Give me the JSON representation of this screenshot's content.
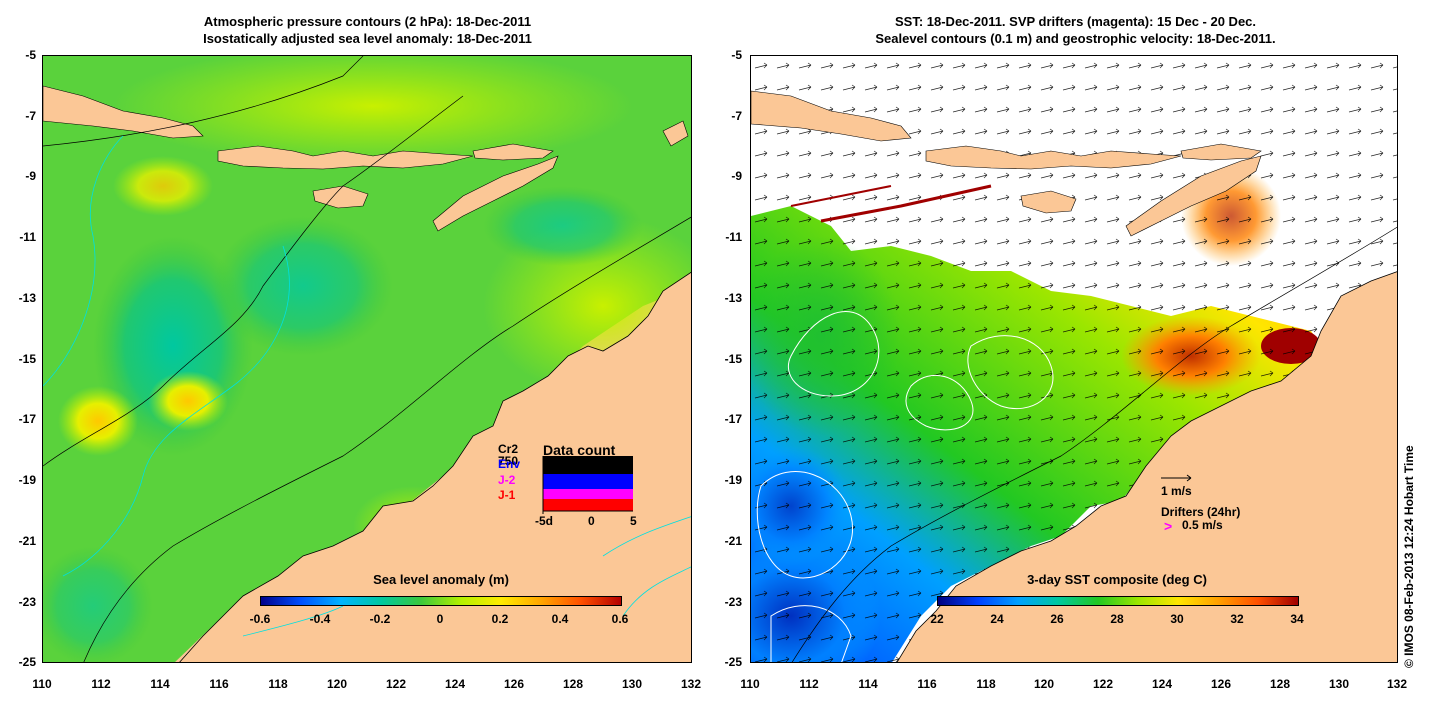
{
  "left_panel": {
    "title_line1": "Atmospheric pressure contours (2 hPa): 18-Dec-2011",
    "title_line2": "Isostatically adjusted sea level anomaly: 18-Dec-2011",
    "colorbar_title": "Sea level anomaly (m)",
    "colorbar_ticks": [
      "-0.6",
      "-0.4",
      "-0.2",
      "0",
      "0.2",
      "0.4",
      "0.6"
    ],
    "data_count": {
      "title": "Data count",
      "legend": [
        {
          "label": "Cr2",
          "color": "#000000"
        },
        {
          "label": "Env",
          "color": "#0000ff"
        },
        {
          "label": "J-2",
          "color": "#ff00ff"
        },
        {
          "label": "J-1",
          "color": "#ff0000"
        }
      ],
      "bar_value_label": "750",
      "axis_labels": [
        "-5d",
        "0",
        "5"
      ]
    }
  },
  "right_panel": {
    "title_line1": "SST: 18-Dec-2011. SVP drifters (magenta): 15 Dec - 20 Dec.",
    "title_line2": "Sealevel contours (0.1 m) and geostrophic velocity: 18-Dec-2011.",
    "colorbar_title": "3-day SST composite (deg C)",
    "colorbar_ticks": [
      "22",
      "24",
      "26",
      "28",
      "30",
      "32",
      "34"
    ],
    "velocity_legend": "1 m/s",
    "drifters_legend_title": "Drifters (24hr)",
    "drifters_legend_symbol": ">",
    "drifters_legend_value": "0.5 m/s"
  },
  "axes": {
    "y_ticks": [
      "-5",
      "-7",
      "-9",
      "-11",
      "-13",
      "-15",
      "-17",
      "-19",
      "-21",
      "-23",
      "-25"
    ],
    "x_ticks": [
      "110",
      "112",
      "114",
      "116",
      "118",
      "120",
      "122",
      "124",
      "126",
      "128",
      "130",
      "132"
    ]
  },
  "credit": "© IMOS 08-Feb-2013 12:24 Hobart Time",
  "colors": {
    "land": "#fbc796",
    "sla_scale": [
      "#00008b",
      "#0050ff",
      "#00b4ff",
      "#00c8a0",
      "#3cc83c",
      "#b4f000",
      "#ffeb00",
      "#ffa500",
      "#ff5000",
      "#b40000"
    ],
    "sst_scale": [
      "#00007f",
      "#0040ff",
      "#00a0ff",
      "#00c8a0",
      "#22c822",
      "#9be600",
      "#ffe600",
      "#ffa000",
      "#ff5000",
      "#a00000"
    ]
  }
}
